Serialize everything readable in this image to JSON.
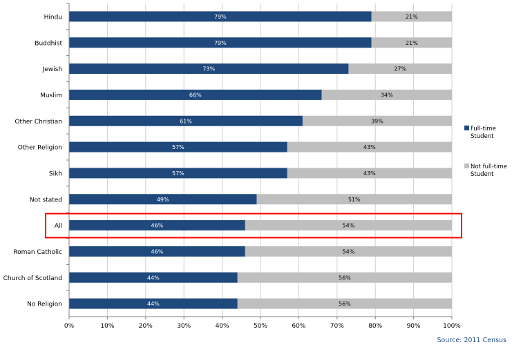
{
  "chart_data": {
    "type": "bar",
    "orientation": "horizontal",
    "stacked": true,
    "categories": [
      "Hindu",
      "Buddhist",
      "Jewish",
      "Muslim",
      "Other Christian",
      "Other Religion",
      "Sikh",
      "Not stated",
      "All",
      "Roman Catholic",
      "Church of Scotland",
      "No Religion"
    ],
    "series": [
      {
        "name": "Full-time Student",
        "color": "#1f497d",
        "values": [
          79,
          79,
          73,
          66,
          61,
          57,
          57,
          49,
          46,
          46,
          44,
          44
        ],
        "labels": [
          "79%",
          "79%",
          "73%",
          "66%",
          "61%",
          "57%",
          "57%",
          "49%",
          "46%",
          "46%",
          "44%",
          "44%"
        ]
      },
      {
        "name": "Not full-time Student",
        "color": "#bfbfbf",
        "values": [
          21,
          21,
          27,
          34,
          39,
          43,
          43,
          51,
          54,
          54,
          56,
          56
        ],
        "labels": [
          "21%",
          "21%",
          "27%",
          "34%",
          "39%",
          "43%",
          "43%",
          "51%",
          "54%",
          "54%",
          "56%",
          "56%"
        ]
      }
    ],
    "xlim": [
      0,
      100
    ],
    "x_ticks": [
      "0%",
      "10%",
      "20%",
      "30%",
      "40%",
      "50%",
      "60%",
      "70%",
      "80%",
      "90%",
      "100%"
    ],
    "grid": true,
    "legend_position": "right",
    "highlighted_category": "All",
    "highlight_color": "#ff0000"
  },
  "source": "Source: 2011 Census"
}
